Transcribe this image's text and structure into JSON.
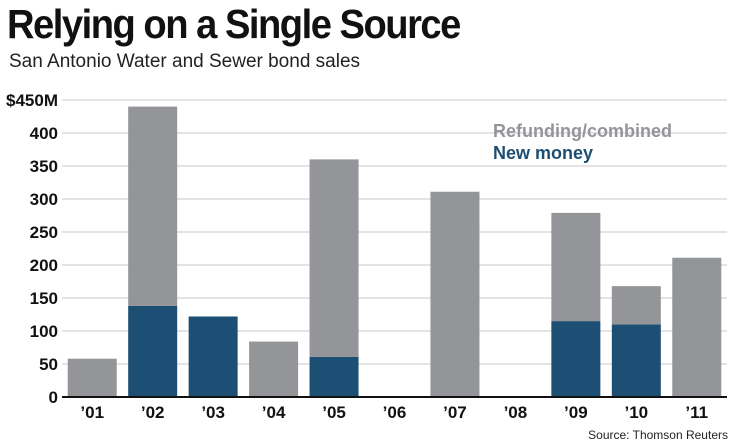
{
  "header": {
    "title": "Relying on a Single Source",
    "subtitle": "San Antonio Water and Sewer bond sales",
    "source": "Source: Thomson Reuters"
  },
  "colors": {
    "refunding": "#939598",
    "new_money": "#1d4e73",
    "grid": "#c8c8c8",
    "axis": "#111111"
  },
  "chart_data": {
    "type": "bar",
    "stacked": true,
    "categories": [
      "’01",
      "’02",
      "’03",
      "’04",
      "’05",
      "’06",
      "’07",
      "’08",
      "’09",
      "’10",
      "’11"
    ],
    "series": [
      {
        "name": "New money",
        "color": "#1d4e73",
        "values": [
          0,
          138,
          122,
          0,
          61,
          0,
          0,
          0,
          115,
          110,
          0
        ]
      },
      {
        "name": "Refunding/combined",
        "color": "#939598",
        "values": [
          58,
          302,
          0,
          84,
          299,
          0,
          311,
          0,
          164,
          58,
          211
        ]
      }
    ],
    "yticks": [
      0,
      50,
      100,
      150,
      200,
      250,
      300,
      350,
      400,
      450
    ],
    "ytick_labels": [
      "0",
      "50",
      "100",
      "150",
      "200",
      "250",
      "300",
      "350",
      "400",
      "$450M"
    ],
    "ylim": [
      0,
      450
    ],
    "legend": [
      "Refunding/combined",
      "New money"
    ],
    "legend_position": "top-right",
    "grid": true,
    "title": "Relying on a Single Source",
    "xlabel": "",
    "ylabel": ""
  }
}
